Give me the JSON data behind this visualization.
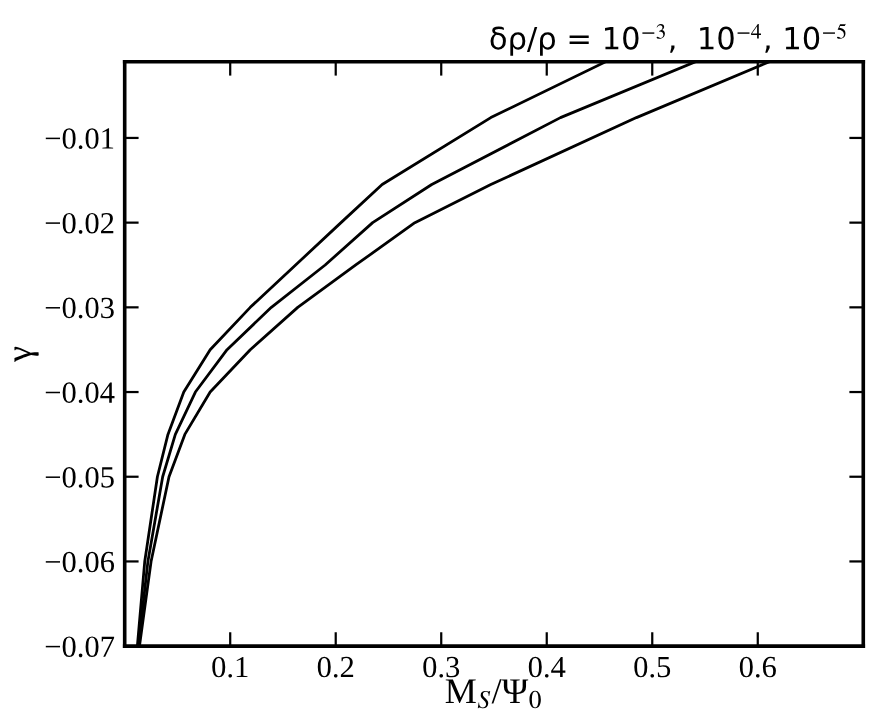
{
  "chart_data": {
    "type": "line",
    "xlabel": "M$_{S}$/Ψ$_{0}$",
    "ylabel": "γ",
    "annotations": [
      "δρ/ρ = 10$^{−3}$,  10$^{−4}$, 10$^{−5}$"
    ],
    "xlim": [
      0,
      0.7
    ],
    "ylim": [
      -0.07,
      -0.001
    ],
    "xticks": [
      0.1,
      0.2,
      0.3,
      0.4,
      0.5,
      0.6
    ],
    "yticks": [
      {
        "value": -0.07,
        "label": "−0.07"
      },
      {
        "value": -0.06,
        "label": "−0.06"
      },
      {
        "value": -0.05,
        "label": "−0.05"
      },
      {
        "value": -0.04,
        "label": "−0.04"
      },
      {
        "value": -0.03,
        "label": "−0.03"
      },
      {
        "value": -0.02,
        "label": "−0.02"
      },
      {
        "value": -0.01,
        "label": "−0.01"
      }
    ],
    "grid": false,
    "legend": false,
    "marker": "none",
    "line_style": "solid",
    "series": [
      {
        "color": "#000000",
        "x": [
          0.012,
          0.019,
          0.031,
          0.041,
          0.056,
          0.081,
          0.119,
          0.162,
          0.205,
          0.244,
          0.347,
          0.456
        ],
        "values": [
          -0.07,
          -0.06,
          -0.05,
          -0.045,
          -0.04,
          -0.035,
          -0.03,
          -0.025,
          -0.02,
          -0.0155,
          -0.0076,
          -0.001
        ]
      },
      {
        "color": "#000000",
        "x": [
          0.013,
          0.022,
          0.036,
          0.048,
          0.067,
          0.097,
          0.139,
          0.19,
          0.235,
          0.291,
          0.413,
          0.541
        ],
        "values": [
          -0.07,
          -0.06,
          -0.05,
          -0.045,
          -0.04,
          -0.035,
          -0.03,
          -0.025,
          -0.02,
          -0.0155,
          -0.0076,
          -0.001
        ]
      },
      {
        "color": "#000000",
        "x": [
          0.014,
          0.025,
          0.042,
          0.057,
          0.081,
          0.119,
          0.164,
          0.219,
          0.275,
          0.347,
          0.485,
          0.611
        ],
        "values": [
          -0.07,
          -0.06,
          -0.05,
          -0.045,
          -0.04,
          -0.035,
          -0.03,
          -0.025,
          -0.02,
          -0.0155,
          -0.0076,
          -0.001
        ]
      }
    ]
  }
}
